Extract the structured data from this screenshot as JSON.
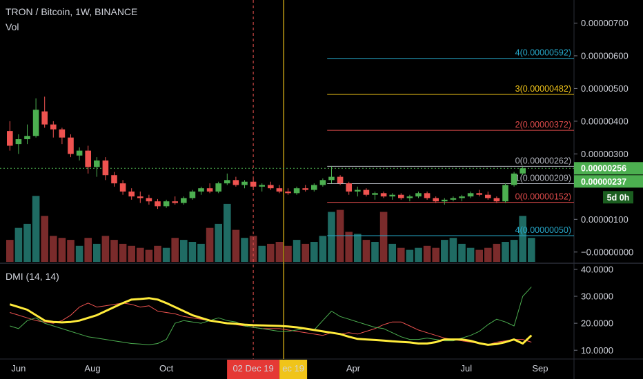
{
  "header": {
    "title": "TRON / Bitcoin, 1W, BINANCE",
    "volume_label": "Vol",
    "indicator_label": "DMI (14, 14)"
  },
  "colors": {
    "up": "#26a69a",
    "down": "#ef5350",
    "up_bar": "#4caf50",
    "vol_up": "#1f6b63",
    "vol_down": "#7a2b2b",
    "fib_blue": "#26a7c9",
    "fib_yellow": "#f0c419",
    "fib_red": "#e04b4b",
    "fib_grey": "#b2b5be",
    "dmi_adx": "#ffeb3b",
    "dmi_plus": "#4caf50",
    "dmi_minus": "#ef5350"
  },
  "price_axis": {
    "ticks": [
      "0.00000700",
      "0.00000600",
      "0.00000500",
      "0.00000400",
      "0.00000300",
      "0.00000100",
      "−0.00000000"
    ],
    "tick_values": [
      7.0,
      6.0,
      5.0,
      4.0,
      3.0,
      1.0,
      0.0
    ],
    "range": [
      -0.3,
      7.6
    ],
    "current_price": "0.00000256",
    "second_price": "0.00000237",
    "countdown": "5d 0h"
  },
  "dmi_axis": {
    "ticks": [
      "40.0000",
      "30.0000",
      "20.0000",
      "10.0000"
    ],
    "tick_values": [
      40,
      30,
      20,
      10
    ],
    "range": [
      7,
      42
    ]
  },
  "time_axis": {
    "labels": [
      "Jun",
      "Aug",
      "Oct",
      "Apr",
      "Jul",
      "Sep"
    ],
    "label_weeks": [
      1.5,
      10,
      18.5,
      40,
      53,
      61.5
    ],
    "highlight_red": "02 Dec 19",
    "highlight_yellow": "ec 19",
    "red_marker_week": 28.5,
    "yellow_marker_week": 32
  },
  "fib_levels": [
    {
      "label": "4(0.00000592)",
      "value": 5.92,
      "color": "fib_blue",
      "start_week": 37
    },
    {
      "label": "3(0.00000482)",
      "value": 4.82,
      "color": "fib_yellow",
      "start_week": 37
    },
    {
      "label": "2(0.00000372)",
      "value": 3.72,
      "color": "fib_red",
      "start_week": 37
    },
    {
      "label": "0(0.00000262)",
      "value": 2.62,
      "color": "fib_grey",
      "start_week": 37
    },
    {
      "label": "1(0.00000209)",
      "value": 2.09,
      "color": "fib_grey",
      "start_week": 37
    },
    {
      "label": "0(0.00000152)",
      "value": 1.52,
      "color": "fib_red",
      "start_week": 37
    },
    {
      "label": "4(0.00000050)",
      "value": 0.5,
      "color": "fib_blue",
      "start_week": 37
    }
  ],
  "chart_data": {
    "type": "candlestick",
    "title": "TRON / Bitcoin, 1W, BINANCE",
    "unit": "BTC × 1e-6",
    "candles": [
      {
        "o": 3.7,
        "h": 4.0,
        "l": 3.1,
        "c": 3.25
      },
      {
        "o": 3.3,
        "h": 3.6,
        "l": 3.0,
        "c": 3.45
      },
      {
        "o": 3.45,
        "h": 3.9,
        "l": 3.3,
        "c": 3.55
      },
      {
        "o": 3.55,
        "h": 4.7,
        "l": 3.5,
        "c": 4.35
      },
      {
        "o": 4.3,
        "h": 4.75,
        "l": 3.8,
        "c": 3.9
      },
      {
        "o": 3.9,
        "h": 4.0,
        "l": 3.5,
        "c": 3.75
      },
      {
        "o": 3.75,
        "h": 3.8,
        "l": 3.3,
        "c": 3.5
      },
      {
        "o": 3.5,
        "h": 3.6,
        "l": 2.9,
        "c": 3.0
      },
      {
        "o": 2.95,
        "h": 3.2,
        "l": 2.8,
        "c": 3.1
      },
      {
        "o": 3.1,
        "h": 3.25,
        "l": 2.4,
        "c": 2.6
      },
      {
        "o": 2.6,
        "h": 2.9,
        "l": 2.3,
        "c": 2.8
      },
      {
        "o": 2.8,
        "h": 2.9,
        "l": 2.2,
        "c": 2.35
      },
      {
        "o": 2.35,
        "h": 2.45,
        "l": 2.0,
        "c": 2.1
      },
      {
        "o": 2.1,
        "h": 2.2,
        "l": 1.75,
        "c": 1.85
      },
      {
        "o": 1.85,
        "h": 1.95,
        "l": 1.6,
        "c": 1.7
      },
      {
        "o": 1.7,
        "h": 1.85,
        "l": 1.5,
        "c": 1.65
      },
      {
        "o": 1.65,
        "h": 1.75,
        "l": 1.45,
        "c": 1.55
      },
      {
        "o": 1.55,
        "h": 1.62,
        "l": 1.32,
        "c": 1.4
      },
      {
        "o": 1.4,
        "h": 1.6,
        "l": 1.35,
        "c": 1.55
      },
      {
        "o": 1.55,
        "h": 1.7,
        "l": 1.45,
        "c": 1.5
      },
      {
        "o": 1.5,
        "h": 1.7,
        "l": 1.45,
        "c": 1.65
      },
      {
        "o": 1.65,
        "h": 1.9,
        "l": 1.6,
        "c": 1.85
      },
      {
        "o": 1.85,
        "h": 2.0,
        "l": 1.75,
        "c": 1.95
      },
      {
        "o": 1.95,
        "h": 2.1,
        "l": 1.8,
        "c": 1.85
      },
      {
        "o": 1.85,
        "h": 2.15,
        "l": 1.8,
        "c": 2.1
      },
      {
        "o": 2.1,
        "h": 2.4,
        "l": 2.05,
        "c": 2.2
      },
      {
        "o": 2.2,
        "h": 2.3,
        "l": 2.0,
        "c": 2.05
      },
      {
        "o": 2.05,
        "h": 2.2,
        "l": 1.95,
        "c": 2.15
      },
      {
        "o": 2.15,
        "h": 2.25,
        "l": 1.95,
        "c": 2.0
      },
      {
        "o": 2.0,
        "h": 2.1,
        "l": 1.85,
        "c": 2.05
      },
      {
        "o": 2.05,
        "h": 2.15,
        "l": 1.9,
        "c": 1.95
      },
      {
        "o": 1.95,
        "h": 2.05,
        "l": 1.8,
        "c": 1.85
      },
      {
        "o": 1.85,
        "h": 1.95,
        "l": 1.75,
        "c": 1.8
      },
      {
        "o": 1.8,
        "h": 2.0,
        "l": 1.75,
        "c": 1.95
      },
      {
        "o": 1.95,
        "h": 2.05,
        "l": 1.85,
        "c": 1.9
      },
      {
        "o": 1.9,
        "h": 2.1,
        "l": 1.85,
        "c": 2.05
      },
      {
        "o": 2.05,
        "h": 2.25,
        "l": 2.0,
        "c": 2.2
      },
      {
        "o": 2.2,
        "h": 2.62,
        "l": 2.1,
        "c": 2.3
      },
      {
        "o": 2.3,
        "h": 2.35,
        "l": 2.05,
        "c": 2.1
      },
      {
        "o": 2.1,
        "h": 2.15,
        "l": 1.75,
        "c": 1.85
      },
      {
        "o": 1.85,
        "h": 2.0,
        "l": 1.7,
        "c": 1.9
      },
      {
        "o": 1.9,
        "h": 1.95,
        "l": 1.7,
        "c": 1.75
      },
      {
        "o": 1.75,
        "h": 1.85,
        "l": 1.6,
        "c": 1.8
      },
      {
        "o": 1.8,
        "h": 1.85,
        "l": 1.65,
        "c": 1.7
      },
      {
        "o": 1.7,
        "h": 1.8,
        "l": 1.6,
        "c": 1.75
      },
      {
        "o": 1.75,
        "h": 1.8,
        "l": 1.6,
        "c": 1.65
      },
      {
        "o": 1.65,
        "h": 1.75,
        "l": 1.55,
        "c": 1.7
      },
      {
        "o": 1.7,
        "h": 1.85,
        "l": 1.65,
        "c": 1.8
      },
      {
        "o": 1.8,
        "h": 1.85,
        "l": 1.6,
        "c": 1.65
      },
      {
        "o": 1.65,
        "h": 1.7,
        "l": 1.5,
        "c": 1.55
      },
      {
        "o": 1.55,
        "h": 1.65,
        "l": 1.45,
        "c": 1.6
      },
      {
        "o": 1.6,
        "h": 1.7,
        "l": 1.55,
        "c": 1.65
      },
      {
        "o": 1.65,
        "h": 1.75,
        "l": 1.55,
        "c": 1.7
      },
      {
        "o": 1.7,
        "h": 1.85,
        "l": 1.65,
        "c": 1.8
      },
      {
        "o": 1.8,
        "h": 1.9,
        "l": 1.7,
        "c": 1.75
      },
      {
        "o": 1.75,
        "h": 1.85,
        "l": 1.6,
        "c": 1.65
      },
      {
        "o": 1.65,
        "h": 1.7,
        "l": 1.5,
        "c": 1.55
      },
      {
        "o": 1.55,
        "h": 2.1,
        "l": 1.5,
        "c": 2.05
      },
      {
        "o": 2.05,
        "h": 2.45,
        "l": 2.0,
        "c": 2.4
      },
      {
        "o": 2.4,
        "h": 2.62,
        "l": 2.35,
        "c": 2.56
      }
    ],
    "volumes": [
      0.55,
      0.85,
      0.95,
      1.65,
      1.15,
      0.65,
      0.6,
      0.55,
      0.4,
      0.6,
      0.45,
      0.65,
      0.55,
      0.45,
      0.4,
      0.35,
      0.3,
      0.4,
      0.35,
      0.6,
      0.55,
      0.5,
      0.45,
      0.85,
      0.95,
      1.45,
      0.8,
      0.6,
      0.65,
      0.4,
      0.45,
      0.5,
      0.4,
      0.55,
      0.45,
      0.5,
      0.65,
      1.25,
      1.3,
      0.75,
      0.7,
      0.55,
      0.5,
      1.25,
      0.45,
      0.35,
      0.3,
      0.35,
      0.4,
      0.35,
      0.55,
      0.6,
      0.45,
      0.35,
      0.3,
      0.35,
      0.45,
      0.5,
      0.55,
      1.15,
      0.6
    ],
    "dmi": {
      "adx": [
        27,
        26,
        25,
        23,
        21,
        20.5,
        20.3,
        20.5,
        21,
        22,
        23,
        24.5,
        26,
        27.5,
        28.8,
        29,
        29.3,
        28.8,
        27.5,
        26,
        24.5,
        23,
        22,
        21,
        20.5,
        20,
        19.8,
        19.5,
        19.3,
        19.2,
        19.1,
        19,
        18.8,
        18.5,
        18,
        17.5,
        17,
        16.5,
        16,
        15,
        14.2,
        14,
        13.8,
        13.6,
        13.3,
        13.1,
        12.9,
        12.5,
        12.5,
        13,
        14,
        14,
        14,
        13.5,
        12.6,
        12,
        12.3,
        13,
        14,
        12.5,
        15.5
      ],
      "di_plus": [
        19,
        18,
        21,
        22,
        20,
        19,
        18,
        17,
        16,
        15,
        14.5,
        14,
        13.5,
        13,
        12.5,
        12.3,
        12,
        12.5,
        14,
        20,
        21,
        20.5,
        20,
        21,
        22,
        21,
        20.5,
        19,
        18.5,
        18,
        17.5,
        17,
        17,
        17.5,
        18,
        17.5,
        21,
        24.5,
        22.5,
        21.5,
        20.5,
        19.5,
        18.5,
        18,
        16.5,
        15,
        14,
        14,
        14.5,
        14,
        13.5,
        13.5,
        14.5,
        15.5,
        17,
        19.5,
        21.5,
        20.5,
        19,
        30,
        33.5
      ],
      "di_minus": [
        24,
        23,
        22,
        21,
        20.5,
        20,
        21,
        23,
        26,
        27.5,
        26,
        26.5,
        27,
        27.5,
        27,
        26,
        26.5,
        24.5,
        24,
        23.5,
        22.5,
        22,
        21.5,
        21,
        20.5,
        20,
        19.5,
        19,
        18.5,
        18,
        18,
        18,
        17.5,
        17,
        16.5,
        16,
        15.5,
        16.5,
        16,
        16.5,
        16,
        17,
        18,
        19.5,
        20.5,
        20.5,
        19,
        17.5,
        16.5,
        15.5,
        14.5,
        14,
        13.5,
        13,
        12.5,
        12,
        13,
        13.5,
        14,
        14,
        13
      ]
    }
  }
}
